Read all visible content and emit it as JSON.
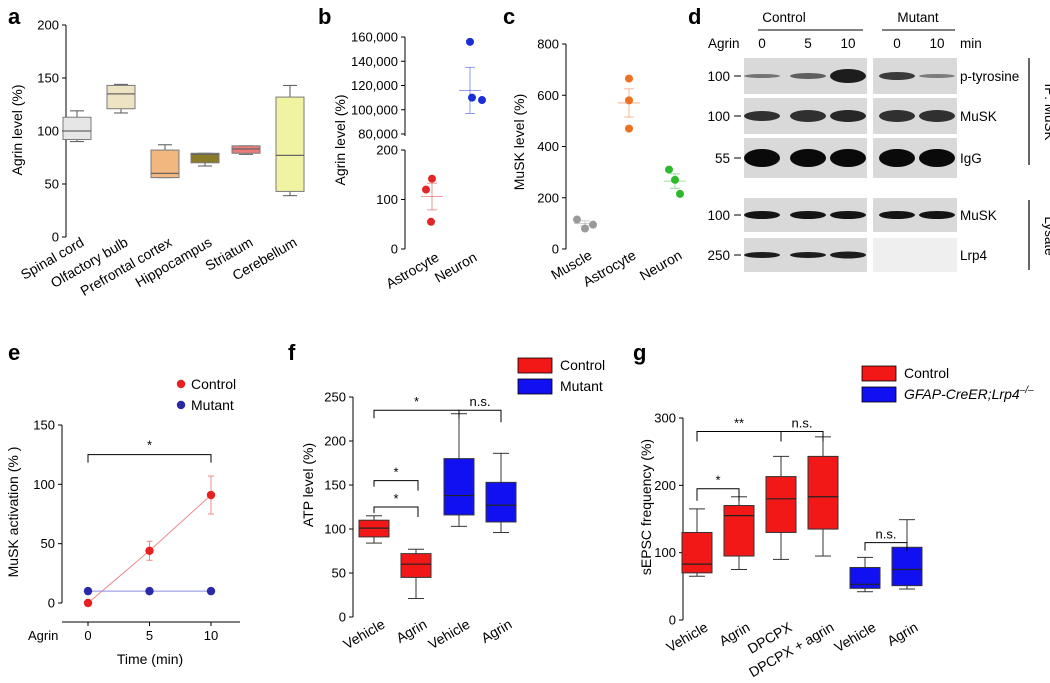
{
  "panels": {
    "a": "a",
    "b": "b",
    "c": "c",
    "d": "d",
    "e": "e",
    "f": "f",
    "g": "g"
  },
  "chart_data": [
    {
      "id": "a",
      "type": "box",
      "title": "",
      "ylabel": "Agrin level (%)",
      "ylim": [
        0,
        200
      ],
      "yticks": [
        "0",
        "50",
        "100",
        "150",
        "200"
      ],
      "categories": [
        "Spinal cord",
        "Olfactory bulb",
        "Prefrontal cortex",
        "Hippocampus",
        "Striatum",
        "Cerebellum"
      ],
      "colors": [
        "#e6e6e6",
        "#eee3c2",
        "#f2b77e",
        "#8a7b2a",
        "#ee7a7a",
        "#f0f4a2"
      ],
      "boxes": [
        {
          "min": 90,
          "q1": 92,
          "median": 100,
          "q3": 113,
          "max": 119
        },
        {
          "min": 117,
          "q1": 121,
          "median": 135,
          "q3": 143,
          "max": 144
        },
        {
          "min": 56,
          "q1": 56,
          "median": 60,
          "q3": 82,
          "max": 87
        },
        {
          "min": 67,
          "q1": 70,
          "median": 78,
          "q3": 79,
          "max": 79
        },
        {
          "min": 78,
          "q1": 79,
          "median": 83,
          "q3": 86,
          "max": 86
        },
        {
          "min": 39,
          "q1": 43,
          "median": 77,
          "q3": 132,
          "max": 143
        }
      ]
    },
    {
      "id": "b",
      "type": "scatter",
      "ylabel": "Agrin level (%)",
      "axis_break": true,
      "ylim_lower": [
        0,
        200
      ],
      "yticks_lower": [
        "0",
        "100",
        "200"
      ],
      "ylim_upper": [
        80000,
        160000
      ],
      "yticks_upper": [
        "80,000",
        "100,000",
        "120,000",
        "140,000",
        "160,000"
      ],
      "categories": [
        "Astrocyte",
        "Neuron"
      ],
      "colors": [
        "#e32626",
        "#1a2ed6"
      ],
      "points": [
        [
          142,
          120,
          55
        ],
        [
          156000,
          110000,
          108000
        ]
      ],
      "mean": [
        106,
        116000
      ],
      "sem": [
        27,
        19000
      ]
    },
    {
      "id": "c",
      "type": "scatter",
      "ylabel": "MuSK level (%)",
      "ylim": [
        0,
        800
      ],
      "yticks": [
        "0",
        "200",
        "400",
        "600",
        "800"
      ],
      "categories": [
        "Muscle",
        "Astrocyte",
        "Neuron"
      ],
      "colors": [
        "#9a9a9a",
        "#ee7022",
        "#2db82d"
      ],
      "points": [
        [
          115,
          95,
          80
        ],
        [
          665,
          580,
          470
        ],
        [
          310,
          270,
          215
        ]
      ],
      "mean": [
        100,
        570,
        265
      ],
      "sem": [
        10,
        55,
        28
      ]
    },
    {
      "id": "e",
      "type": "line",
      "ylabel": "MuSK activation (% )",
      "xlabel": "Time (min)",
      "x_prefix": "Agrin",
      "x": [
        0,
        5,
        10
      ],
      "xticks": [
        "0",
        "5",
        "10"
      ],
      "ylim": [
        0,
        150
      ],
      "yticks": [
        "0",
        "50",
        "100",
        "150"
      ],
      "series": [
        {
          "name": "Control",
          "color": "#e82020",
          "line_color": "#f08a8a",
          "values": [
            0,
            44,
            91
          ],
          "err": [
            0,
            8,
            16
          ]
        },
        {
          "name": "Mutant",
          "color": "#2a2aa8",
          "line_color": "#8a8ae0",
          "values": [
            10,
            10,
            10
          ],
          "err": [
            0,
            0,
            0
          ]
        }
      ],
      "annotations": [
        {
          "text": "*",
          "from": 0,
          "to": 10,
          "y": 125
        }
      ]
    },
    {
      "id": "f",
      "type": "box",
      "ylabel": "ATP level (%)",
      "ylim": [
        0,
        250
      ],
      "yticks": [
        "0",
        "50",
        "100",
        "150",
        "200",
        "250"
      ],
      "categories": [
        "Vehicle",
        "Agrin",
        "Vehicle",
        "Agrin"
      ],
      "groups": [
        "Control",
        "Control",
        "Mutant",
        "Mutant"
      ],
      "legend": [
        {
          "name": "Control",
          "color": "#f21818"
        },
        {
          "name": "Mutant",
          "color": "#1010f0"
        }
      ],
      "colors": [
        "#f21818",
        "#f21818",
        "#1010f0",
        "#1010f0"
      ],
      "boxes": [
        {
          "min": 84,
          "q1": 91,
          "median": 101,
          "q3": 110,
          "max": 115
        },
        {
          "min": 21,
          "q1": 45,
          "median": 60,
          "q3": 72,
          "max": 77
        },
        {
          "min": 103,
          "q1": 116,
          "median": 138,
          "q3": 180,
          "max": 231
        },
        {
          "min": 96,
          "q1": 108,
          "median": 127,
          "q3": 153,
          "max": 186
        }
      ],
      "annotations": [
        {
          "text": "*",
          "from": 0,
          "to": 2,
          "y": 235
        },
        {
          "text": "n.s.",
          "from": 2,
          "to": 3,
          "y": 235
        },
        {
          "text": "*",
          "from": 0,
          "to": 1,
          "y": 155
        },
        {
          "text": "*",
          "from": 0,
          "to": 1,
          "y": 125
        }
      ]
    },
    {
      "id": "g",
      "type": "box",
      "ylabel": "sEPSC frequency (%)",
      "ylim": [
        0,
        300
      ],
      "yticks": [
        "0",
        "100",
        "200",
        "300"
      ],
      "categories": [
        "Vehicle",
        "Agrin",
        "DPCPX",
        "DPCPX + agrin",
        "Vehicle",
        "Agrin"
      ],
      "legend": [
        {
          "name": "Control",
          "color": "#f21818",
          "italic": false
        },
        {
          "name": "GFAP-CreER;Lrp4",
          "sup": "–/–",
          "color": "#1010f0",
          "italic": true
        }
      ],
      "colors": [
        "#f21818",
        "#f21818",
        "#f21818",
        "#f21818",
        "#1010f0",
        "#1010f0"
      ],
      "boxes": [
        {
          "min": 65,
          "q1": 70,
          "median": 83,
          "q3": 130,
          "max": 165
        },
        {
          "min": 75,
          "q1": 95,
          "median": 155,
          "q3": 170,
          "max": 183
        },
        {
          "min": 90,
          "q1": 130,
          "median": 180,
          "q3": 213,
          "max": 243
        },
        {
          "min": 95,
          "q1": 135,
          "median": 183,
          "q3": 243,
          "max": 272
        },
        {
          "min": 42,
          "q1": 47,
          "median": 53,
          "q3": 78,
          "max": 93
        },
        {
          "min": 46,
          "q1": 51,
          "median": 75,
          "q3": 108,
          "max": 149
        }
      ],
      "annotations": [
        {
          "text": "**",
          "from": 0,
          "to": 2,
          "y": 280
        },
        {
          "text": "n.s.",
          "from": 2,
          "to": 3,
          "y": 280
        },
        {
          "text": "*",
          "from": 0,
          "to": 1,
          "y": 195
        },
        {
          "text": "n.s.",
          "from": 4,
          "to": 5,
          "y": 115
        }
      ]
    }
  ],
  "blot": {
    "groups": [
      "Control",
      "Mutant"
    ],
    "agrin_label": "Agrin",
    "time_labels": [
      "0",
      "5",
      "10",
      "0",
      "10"
    ],
    "time_unit": "min",
    "rows": [
      {
        "mw": "100",
        "label": "p-tyrosine"
      },
      {
        "mw": "100",
        "label": "MuSK"
      },
      {
        "mw": "55",
        "label": "IgG"
      },
      {
        "mw": "100",
        "label": "MuSK"
      },
      {
        "mw": "250",
        "label": "Lrp4"
      }
    ],
    "side_labels": [
      "IP: MuSK",
      "Lysate"
    ]
  }
}
